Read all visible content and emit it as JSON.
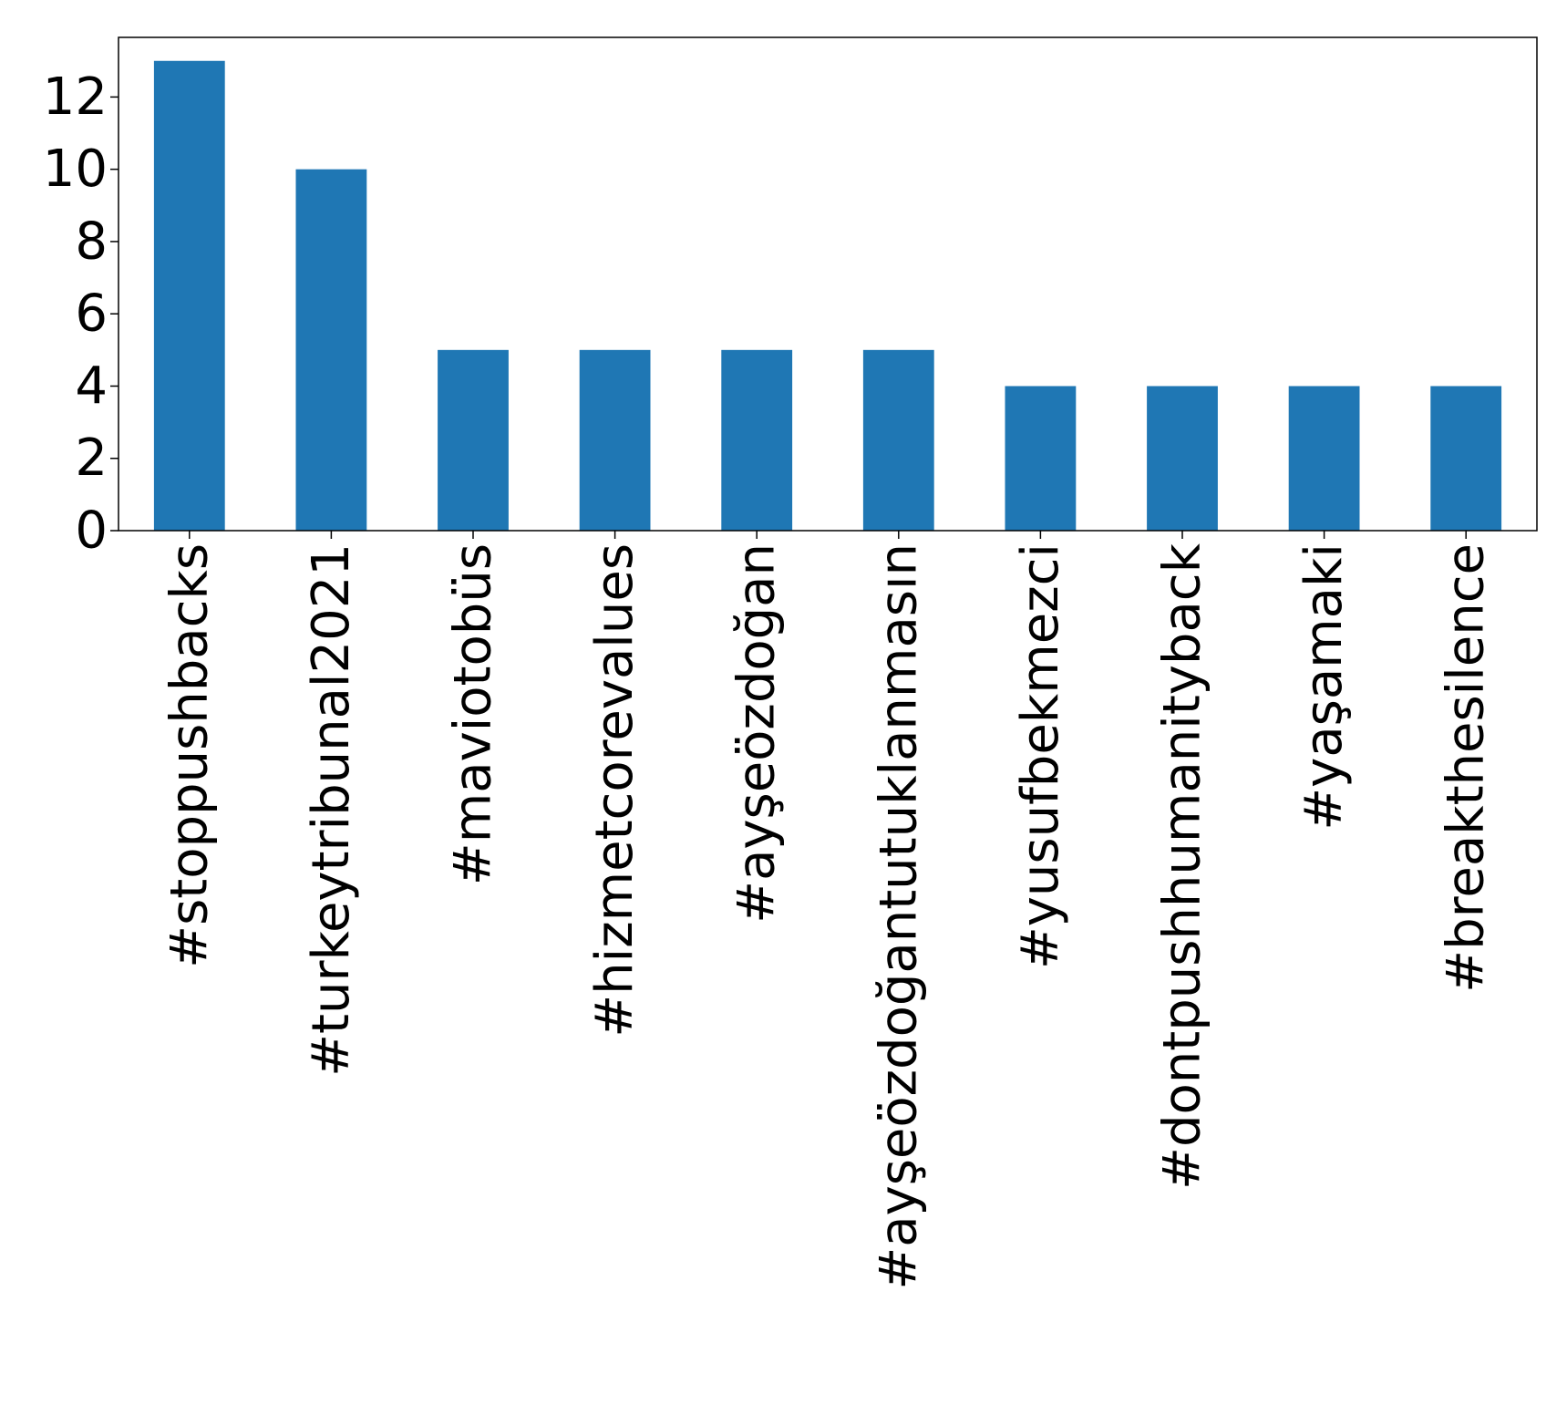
{
  "chart_data": {
    "type": "bar",
    "categories": [
      "#stoppushbacks",
      "#turkeytribunal2021",
      "#maviotobüs",
      "#hizmetcorevalues",
      "#ayşeözdoğan",
      "#ayşeözdoğantutuklanmasın",
      "#yusufbekmezci",
      "#dontpushhumanityback",
      "#yaşamaki",
      "#breakthesilence"
    ],
    "values": [
      13,
      10,
      5,
      5,
      5,
      5,
      4,
      4,
      4,
      4
    ],
    "yticks": [
      "0",
      "2",
      "4",
      "6",
      "8",
      "10",
      "12"
    ],
    "ylim": [
      0,
      13.65
    ],
    "bar_color": "#1f77b4",
    "grid": false,
    "legend": "none"
  }
}
